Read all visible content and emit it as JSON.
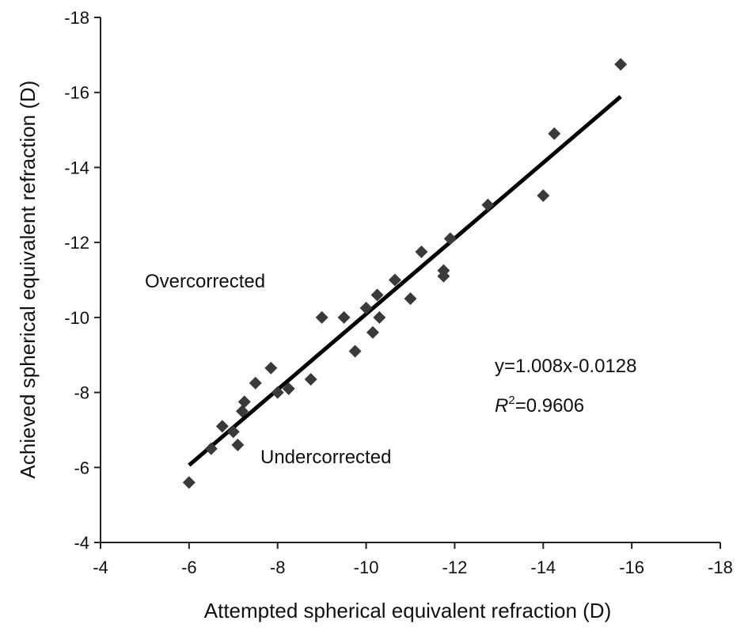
{
  "chart_data": {
    "type": "scatter",
    "title": "",
    "xlabel": "Attempted spherical equivalent refraction (D)",
    "ylabel": "Achieved spherical equivalent refraction (D)",
    "xlim": [
      -4,
      -18
    ],
    "ylim": [
      -4,
      -18
    ],
    "x_ticks": [
      -4,
      -6,
      -8,
      -10,
      -12,
      -14,
      -16,
      -18
    ],
    "y_ticks": [
      -4,
      -6,
      -8,
      -10,
      -12,
      -14,
      -16,
      -18
    ],
    "x_tick_labels": [
      "-4",
      "-6",
      "-8",
      "-10",
      "-12",
      "-14",
      "-16",
      "-18"
    ],
    "y_tick_labels": [
      "-4",
      "-6",
      "-8",
      "-10",
      "-12",
      "-14",
      "-16",
      "-18"
    ],
    "grid": false,
    "marker": "diamond",
    "marker_color": "#3a3a3a",
    "line_color": "#000000",
    "points": [
      {
        "x": -6.0,
        "y": -5.6
      },
      {
        "x": -6.5,
        "y": -6.5
      },
      {
        "x": -6.75,
        "y": -7.1
      },
      {
        "x": -7.0,
        "y": -6.95
      },
      {
        "x": -7.1,
        "y": -6.6
      },
      {
        "x": -7.2,
        "y": -7.5
      },
      {
        "x": -7.25,
        "y": -7.75
      },
      {
        "x": -7.5,
        "y": -8.25
      },
      {
        "x": -7.85,
        "y": -8.65
      },
      {
        "x": -8.0,
        "y": -8.0
      },
      {
        "x": -8.25,
        "y": -8.1
      },
      {
        "x": -8.75,
        "y": -8.35
      },
      {
        "x": -9.0,
        "y": -10.0
      },
      {
        "x": -9.5,
        "y": -10.0
      },
      {
        "x": -9.75,
        "y": -9.1
      },
      {
        "x": -10.0,
        "y": -10.25
      },
      {
        "x": -10.15,
        "y": -9.6
      },
      {
        "x": -10.25,
        "y": -10.6
      },
      {
        "x": -10.3,
        "y": -10.0
      },
      {
        "x": -10.65,
        "y": -11.0
      },
      {
        "x": -11.0,
        "y": -10.5
      },
      {
        "x": -11.25,
        "y": -11.75
      },
      {
        "x": -11.75,
        "y": -11.1
      },
      {
        "x": -11.75,
        "y": -11.25
      },
      {
        "x": -11.9,
        "y": -12.1
      },
      {
        "x": -12.75,
        "y": -13.0
      },
      {
        "x": -14.0,
        "y": -13.25
      },
      {
        "x": -14.25,
        "y": -14.9
      },
      {
        "x": -15.75,
        "y": -16.75
      }
    ],
    "trendline": {
      "x": [
        -6.0,
        -15.75
      ],
      "y": [
        -6.06,
        -15.89
      ]
    },
    "annotations": {
      "over": "Overcorrected",
      "under": "Undercorrected",
      "equation": "y=1.008x-0.0128",
      "r2_symbol": "R",
      "r2_sup": "2",
      "r2_value": "=0.9606"
    }
  }
}
